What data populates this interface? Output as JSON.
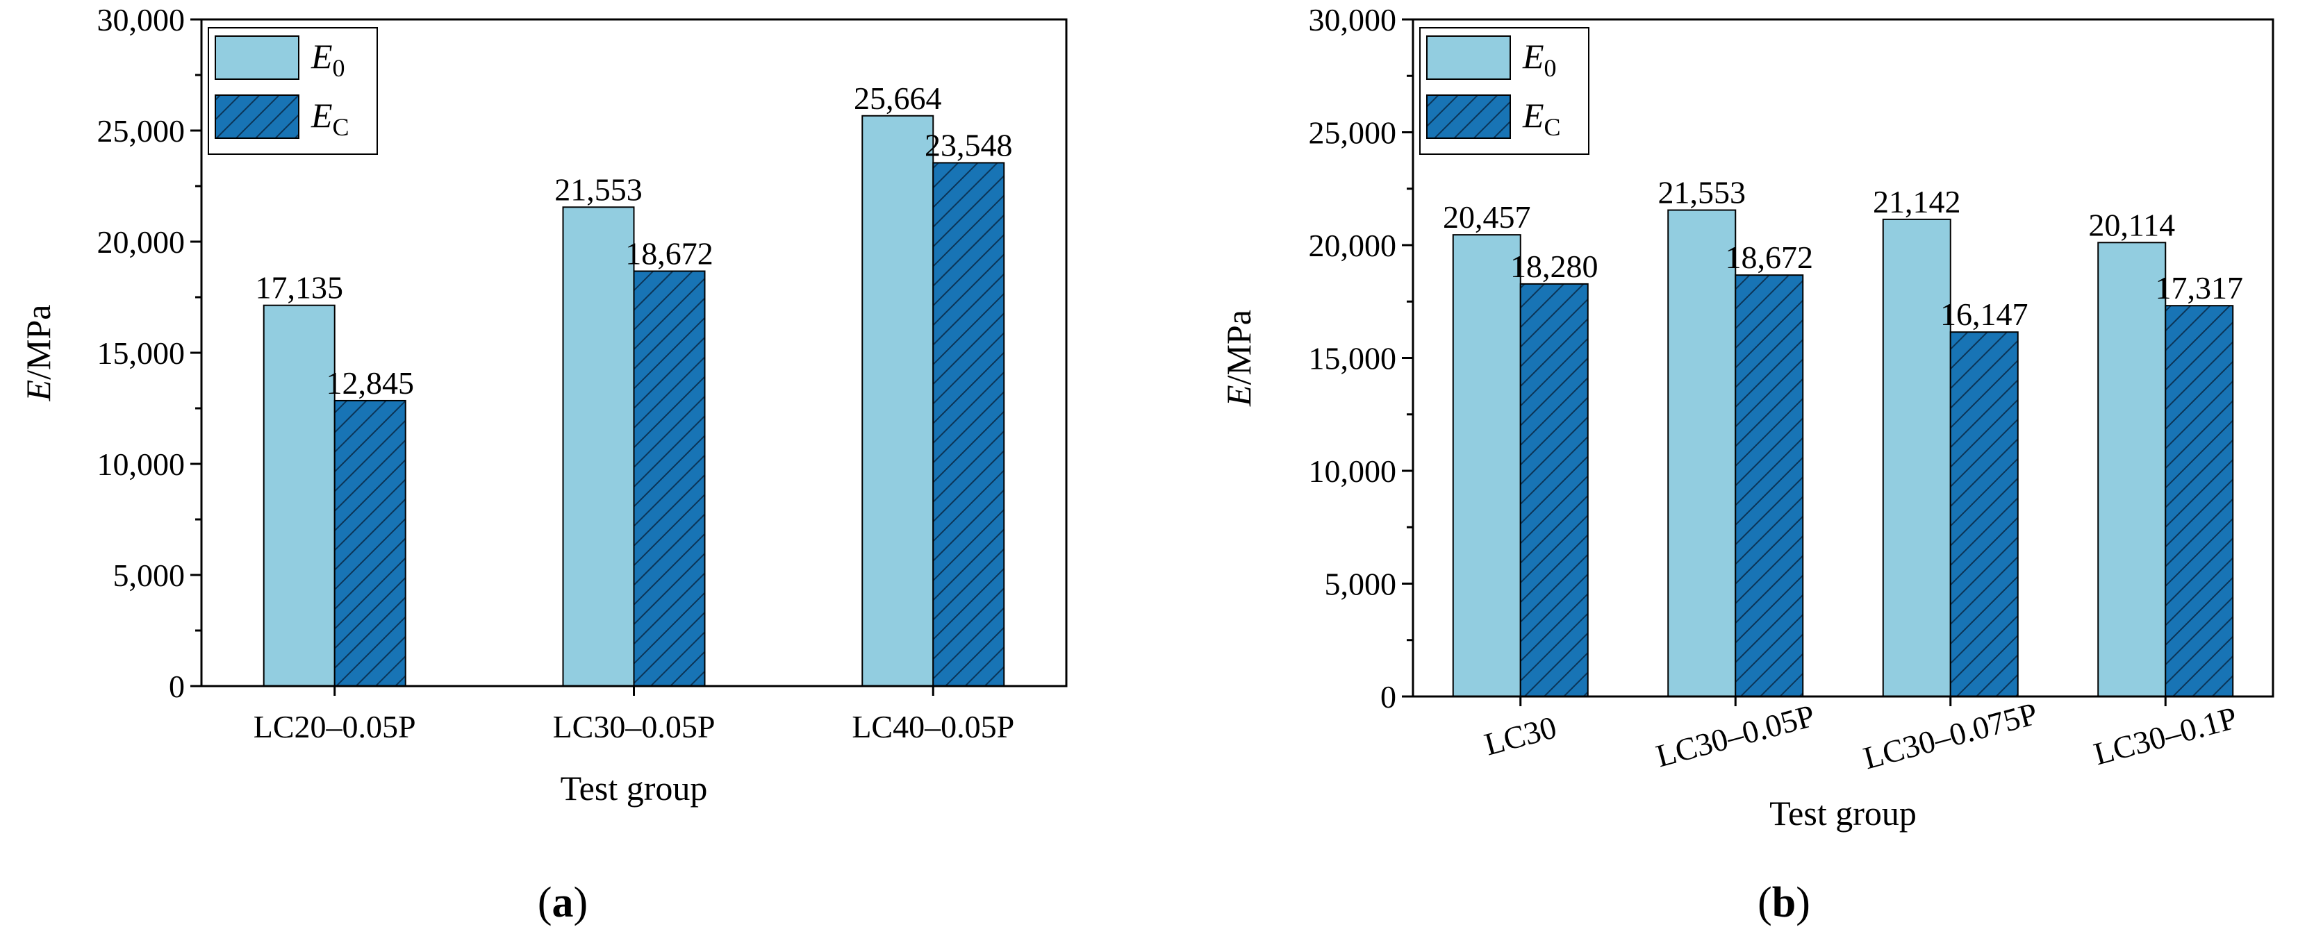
{
  "colors": {
    "e0": "#92CDE0",
    "ec": "#1874B5",
    "hatch": "#0B3558",
    "axis": "#000000"
  },
  "legend": {
    "e0_main": "E",
    "e0_sub": "0",
    "ec_main": "E",
    "ec_sub": "C"
  },
  "chart_data": [
    {
      "type": "bar",
      "panel": "(a)",
      "panel_text": "a",
      "title": "",
      "xlabel": "Test group",
      "ylabel_italic": "E",
      "ylabel_rest": "/MPa",
      "ylim": [
        0,
        30000
      ],
      "yticks": [
        0,
        5000,
        10000,
        15000,
        20000,
        25000,
        30000
      ],
      "ytick_labels": [
        "0",
        "5,000",
        "10,000",
        "15,000",
        "20,000",
        "25,000",
        "30,000"
      ],
      "categories": [
        "LC20–0.05P",
        "LC30–0.05P",
        "LC40–0.05P"
      ],
      "series": [
        {
          "name": "E0",
          "values": [
            17135,
            21553,
            25664
          ],
          "labels": [
            "17,135",
            "21,553",
            "25,664"
          ]
        },
        {
          "name": "EC",
          "values": [
            12845,
            18672,
            23548
          ],
          "labels": [
            "12,845",
            "18,672",
            "23,548"
          ]
        }
      ],
      "legend_position": "top-left"
    },
    {
      "type": "bar",
      "panel": "(b)",
      "panel_text": "b",
      "title": "",
      "xlabel": "Test group",
      "ylabel_italic": "E",
      "ylabel_rest": "/MPa",
      "ylim": [
        0,
        30000
      ],
      "yticks": [
        0,
        5000,
        10000,
        15000,
        20000,
        25000,
        30000
      ],
      "ytick_labels": [
        "0",
        "5,000",
        "10,000",
        "15,000",
        "20,000",
        "25,000",
        "30,000"
      ],
      "categories": [
        "LC30",
        "LC30–0.05P",
        "LC30–0.075P",
        "LC30–0.1P"
      ],
      "series": [
        {
          "name": "E0",
          "values": [
            20457,
            21553,
            21142,
            20114
          ],
          "labels": [
            "20,457",
            "21,553",
            "21,142",
            "20,114"
          ]
        },
        {
          "name": "EC",
          "values": [
            18280,
            18672,
            16147,
            17317
          ],
          "labels": [
            "18,280",
            "18,672",
            "16,147",
            "17,317"
          ]
        }
      ],
      "legend_position": "top-left"
    }
  ]
}
